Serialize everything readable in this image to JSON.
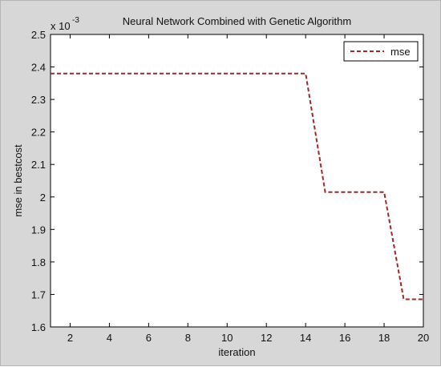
{
  "chart_data": {
    "type": "line",
    "title": "Neural Network Combined with Genetic Algorithm",
    "xlabel": "iteration",
    "ylabel": "mse in bestcost",
    "y_exponent_label": "x 10",
    "y_exponent": "-3",
    "xlim": [
      1,
      20
    ],
    "ylim": [
      1.6,
      2.5
    ],
    "xticks": [
      "2",
      "4",
      "6",
      "8",
      "10",
      "12",
      "14",
      "16",
      "18",
      "20"
    ],
    "yticks": [
      "1.6",
      "1.7",
      "1.8",
      "1.9",
      "2",
      "2.1",
      "2.2",
      "2.3",
      "2.4",
      "2.5"
    ],
    "legend_position": "top-right",
    "series": [
      {
        "name": "mse",
        "color": "#a0282a",
        "style": "dashed",
        "x": [
          1,
          14,
          15,
          18,
          19,
          20
        ],
        "y": [
          2.38,
          2.38,
          2.015,
          2.015,
          1.685,
          1.685
        ]
      }
    ]
  }
}
